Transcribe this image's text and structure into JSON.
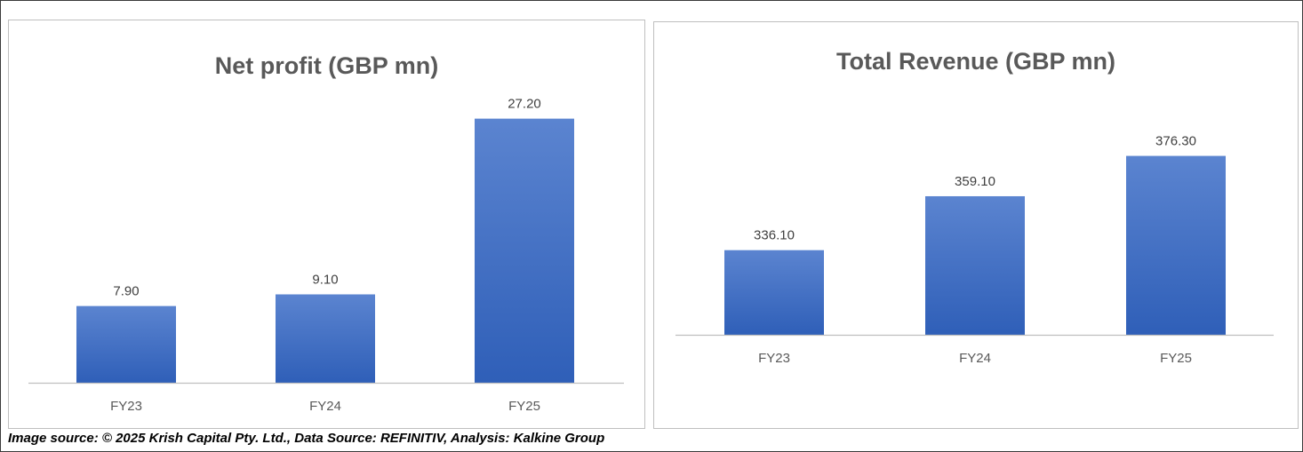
{
  "chart_data": [
    {
      "type": "bar",
      "title": "Net profit (GBP mn)",
      "categories": [
        "FY23",
        "FY24",
        "FY25"
      ],
      "values": [
        7.9,
        9.1,
        27.2
      ],
      "data_labels": [
        "7.90",
        "9.10",
        "27.20"
      ],
      "xlabel": "",
      "ylabel": "",
      "ylim": [
        0,
        30
      ],
      "grid": false,
      "bar_color": "#4472C4"
    },
    {
      "type": "bar",
      "title": "Total Revenue (GBP mn)",
      "categories": [
        "FY23",
        "FY24",
        "FY25"
      ],
      "values": [
        336.1,
        359.1,
        376.3
      ],
      "data_labels": [
        "336.10",
        "359.10",
        "376.30"
      ],
      "xlabel": "",
      "ylabel": "",
      "ylim": [
        300,
        400
      ],
      "grid": false,
      "bar_color": "#4472C4"
    }
  ],
  "caption": "Image source: © 2025 Krish Capital Pty. Ltd., Data Source: REFINITIV, Analysis: Kalkine Group"
}
